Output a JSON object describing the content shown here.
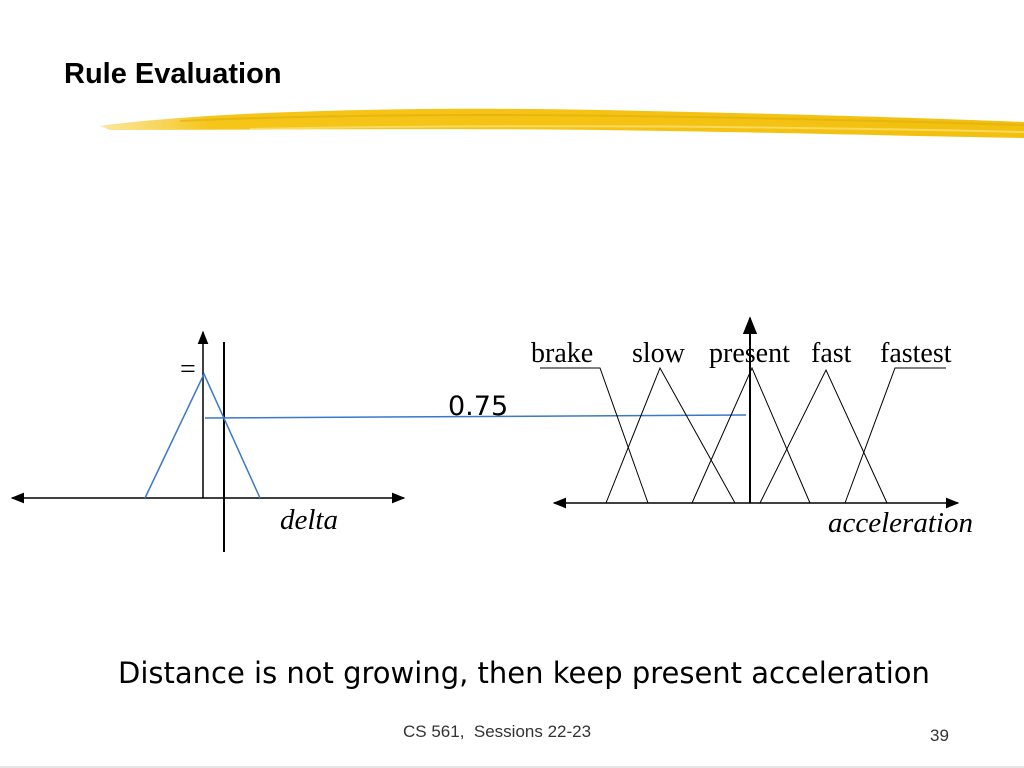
{
  "slide": {
    "title": "Rule Evaluation",
    "caption": "Distance is not growing, then keep present acceleration",
    "footer_course": "CS 561,  Sessions 22-23",
    "page_number": "39",
    "accent_color": "#f5c518"
  },
  "diagram": {
    "equals_symbol": "=",
    "firing_strength": "0.75",
    "left_axis_label": "delta",
    "right_axis_label": "acceleration",
    "membership_labels": [
      "brake",
      "slow",
      "present",
      "fast",
      "fastest"
    ],
    "line_color": "#3a78c8"
  }
}
